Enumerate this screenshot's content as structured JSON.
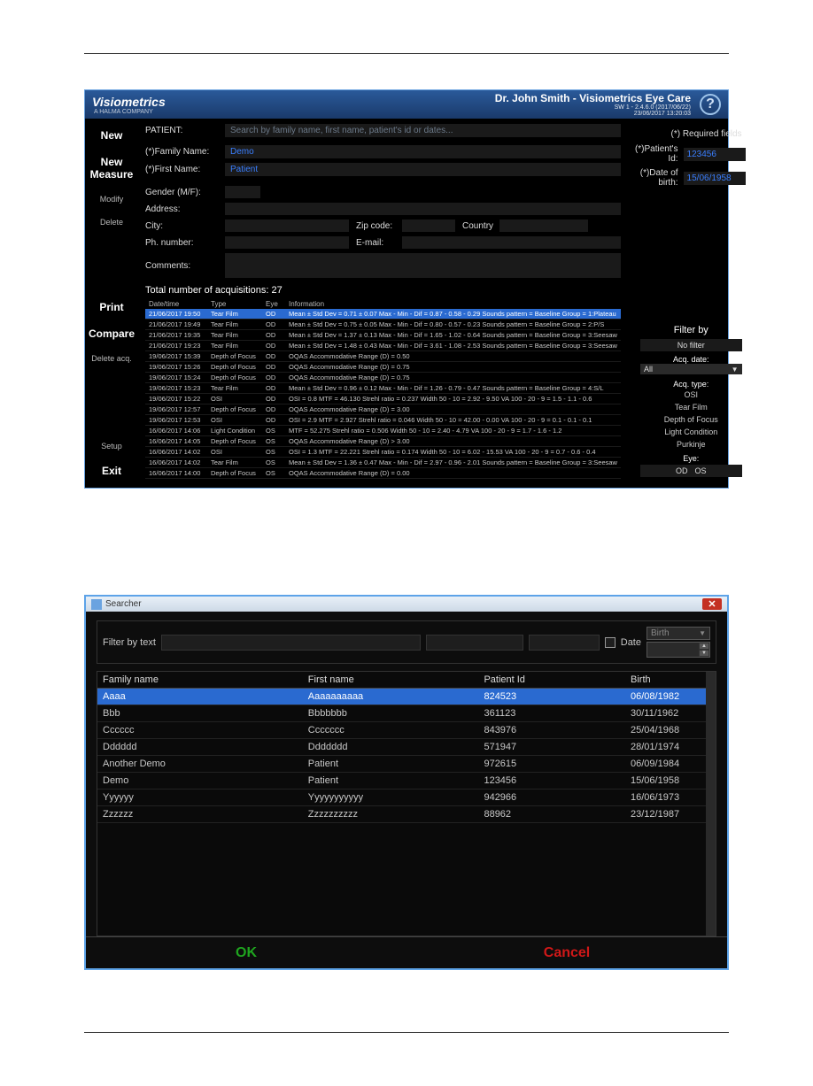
{
  "colors": {
    "header_bg_top": "#2a5a9a",
    "header_bg_bottom": "#1a3a6a",
    "selected_row": "#2a6ad0",
    "ok_color": "#1fa51f",
    "cancel_color": "#d01818",
    "win_border": "#5da3e8"
  },
  "app": {
    "brand": "Visiometrics",
    "brand_sub": "A HALMA COMPANY",
    "doctor": "Dr. John Smith  - Visiometrics Eye Care",
    "sw_line": "SW 1 - 2.4.6.0 (2017/06/22)",
    "sw_line2": "23/06/2017 13:20:03",
    "sidebar": {
      "new": "New",
      "new_measure": "New Measure",
      "modify": "Modify",
      "delete": "Delete",
      "print": "Print",
      "compare": "Compare",
      "delete_acq": "Delete acq.",
      "setup": "Setup",
      "exit": "Exit"
    },
    "form": {
      "patient_label": "PATIENT:",
      "search_placeholder": "Search by family name, first name, patient's id or dates...",
      "required_note": "(*) Required fields",
      "family_label": "(*)Family Name:",
      "family_value": "Demo",
      "first_label": "(*)First Name:",
      "first_value": "Patient",
      "pid_label": "(*)Patient's Id:",
      "pid_value": "123456",
      "dob_label": "(*)Date of birth:",
      "dob_value": "15/06/1958",
      "gender_label": "Gender (M/F):",
      "address_label": "Address:",
      "city_label": "City:",
      "zip_label": "Zip code:",
      "country_label": "Country",
      "phone_label": "Ph. number:",
      "email_label": "E-mail:",
      "comments_label": "Comments:"
    },
    "acq_total": "Total number of acquisitions: 27",
    "grid": {
      "headers": {
        "date": "Date/time",
        "type": "Type",
        "eye": "Eye",
        "info": "Information"
      },
      "rows": [
        {
          "date": "21/06/2017 19:50",
          "type": "Tear Film",
          "eye": "OD",
          "info": "Mean ± Std Dev = 0.71 ± 0.07   Max - Min - Dif = 0.87 - 0.58 - 0.29  Sounds pattern = Baseline   Group = 1:Plateau"
        },
        {
          "date": "21/06/2017 19:49",
          "type": "Tear Film",
          "eye": "OD",
          "info": "Mean ± Std Dev = 0.75 ± 0.05   Max - Min - Dif = 0.80 - 0.57 - 0.23  Sounds pattern = Baseline   Group = 2:P/S"
        },
        {
          "date": "21/06/2017 19:35",
          "type": "Tear Film",
          "eye": "OD",
          "info": "Mean ± Std Dev = 1.37 ± 0.13   Max - Min - Dif = 1.65 - 1.02 - 0.64  Sounds pattern = Baseline   Group = 3:Seesaw"
        },
        {
          "date": "21/06/2017 19:23",
          "type": "Tear Film",
          "eye": "OD",
          "info": "Mean ± Std Dev = 1.48 ± 0.43   Max - Min - Dif = 3.61 - 1.08 - 2.53  Sounds pattern = Baseline   Group = 3:Seesaw"
        },
        {
          "date": "19/06/2017 15:39",
          "type": "Depth of Focus",
          "eye": "OD",
          "info": "OQAS Accommodative Range (D) = 0.50"
        },
        {
          "date": "19/06/2017 15:26",
          "type": "Depth of Focus",
          "eye": "OD",
          "info": "OQAS Accommodative Range (D) = 0.75"
        },
        {
          "date": "19/06/2017 15:24",
          "type": "Depth of Focus",
          "eye": "OD",
          "info": "OQAS Accommodative Range (D) = 0.75"
        },
        {
          "date": "19/06/2017 15:23",
          "type": "Tear Film",
          "eye": "OD",
          "info": "Mean ± Std Dev = 0.96 ± 0.12   Max - Min - Dif = 1.26 - 0.79 - 0.47  Sounds pattern = Baseline   Group = 4:S/L"
        },
        {
          "date": "19/06/2017 15:22",
          "type": "OSI",
          "eye": "OD",
          "info": "OSI = 0.8   MTF = 46.130  Strehl ratio = 0.237   Width 50 - 10 = 2.92 - 9.50   VA 100 - 20 - 9 = 1.5 - 1.1 - 0.6"
        },
        {
          "date": "19/06/2017 12:57",
          "type": "Depth of Focus",
          "eye": "OD",
          "info": "OQAS Accommodative Range (D) = 3.00"
        },
        {
          "date": "19/06/2017 12:53",
          "type": "OSI",
          "eye": "OD",
          "info": "OSI = 2.9   MTF = 2.927  Strehl ratio = 0.046   Width 50 - 10 = 42.00 - 0.00   VA 100 - 20 - 9 = 0.1 - 0.1 - 0.1"
        },
        {
          "date": "16/06/2017 14:06",
          "type": "Light Condition",
          "eye": "OS",
          "info": "MTF = 52.275  Strehl ratio = 0.506   Width 50 - 10 = 2.40 - 4.79   VA 100 - 20 - 9 = 1.7 - 1.6 - 1.2"
        },
        {
          "date": "16/06/2017 14:05",
          "type": "Depth of Focus",
          "eye": "OS",
          "info": "OQAS Accommodative Range (D) > 3.00"
        },
        {
          "date": "16/06/2017 14:02",
          "type": "OSI",
          "eye": "OS",
          "info": "OSI = 1.3   MTF = 22.221  Strehl ratio = 0.174   Width 50 - 10 = 6.02 - 15.53   VA 100 - 20 - 9 = 0.7 - 0.6 - 0.4"
        },
        {
          "date": "16/06/2017 14:02",
          "type": "Tear Film",
          "eye": "OS",
          "info": "Mean ± Std Dev = 1.36 ± 0.47   Max - Min - Dif = 2.97 - 0.96 - 2.01  Sounds pattern = Baseline   Group = 3:Seesaw"
        },
        {
          "date": "16/06/2017 14:00",
          "type": "Depth of Focus",
          "eye": "OS",
          "info": "OQAS Accommodative Range (D) = 0.00"
        }
      ]
    },
    "filter": {
      "title": "Filter by",
      "no_filter": "No filter",
      "acq_date": "Acq. date:",
      "all": "All",
      "acq_type": "Acq. type:",
      "types": [
        "OSI",
        "Tear Film",
        "Depth of Focus",
        "Light Condition",
        "Purkinje"
      ],
      "eye_label": "Eye:",
      "eye_od": "OD",
      "eye_os": "OS"
    }
  },
  "searcher": {
    "title": "Searcher",
    "filter_label": "Filter by text",
    "date_label": "Date",
    "date_type": "Birth",
    "columns": {
      "fam": "Family name",
      "first": "First name",
      "id": "Patient Id",
      "birth": "Birth"
    },
    "rows": [
      {
        "fam": "Aaaa",
        "first": "Aaaaaaaaaa",
        "id": "824523",
        "birth": "06/08/1982"
      },
      {
        "fam": "Bbb",
        "first": "Bbbbbbb",
        "id": "361123",
        "birth": "30/11/1962"
      },
      {
        "fam": "Cccccc",
        "first": "Ccccccc",
        "id": "843976",
        "birth": "25/04/1968"
      },
      {
        "fam": "Dddddd",
        "first": "Ddddddd",
        "id": "571947",
        "birth": "28/01/1974"
      },
      {
        "fam": "Another Demo",
        "first": "Patient",
        "id": "972615",
        "birth": "06/09/1984"
      },
      {
        "fam": "Demo",
        "first": "Patient",
        "id": "123456",
        "birth": "15/06/1958"
      },
      {
        "fam": "Yyyyyy",
        "first": "Yyyyyyyyyyy",
        "id": "942966",
        "birth": "16/06/1973"
      },
      {
        "fam": "Zzzzzz",
        "first": "Zzzzzzzzzz",
        "id": "88962",
        "birth": "23/12/1987"
      }
    ],
    "ok": "OK",
    "cancel": "Cancel"
  }
}
